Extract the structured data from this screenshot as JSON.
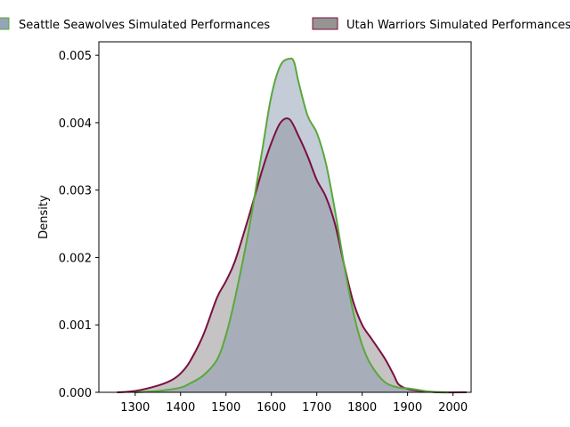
{
  "chart_data": {
    "type": "area",
    "title": "",
    "xlabel": "",
    "ylabel": "Density",
    "xlim": [
      1220,
      2040
    ],
    "ylim": [
      0,
      0.0052
    ],
    "xticks": [
      1300,
      1400,
      1500,
      1600,
      1700,
      1800,
      1900,
      2000
    ],
    "yticks": [
      0.0,
      0.001,
      0.002,
      0.003,
      0.004,
      0.005
    ],
    "ytick_labels": [
      "0.000",
      "0.001",
      "0.002",
      "0.003",
      "0.004",
      "0.005"
    ],
    "grid": false,
    "legend_position": "top",
    "series": [
      {
        "name": "Seattle Seawolves Simulated Performances",
        "line_color": "#5aa83c",
        "fill_color": "#8a9ab0",
        "fill_opacity": 0.5,
        "x": [
          1300,
          1350,
          1400,
          1420,
          1450,
          1480,
          1500,
          1520,
          1550,
          1580,
          1600,
          1620,
          1640,
          1650,
          1660,
          1680,
          1700,
          1720,
          1740,
          1760,
          1780,
          1800,
          1820,
          1850,
          1880,
          1900,
          1920,
          1950,
          1990
        ],
        "y": [
          0.0,
          2e-05,
          7e-05,
          0.00013,
          0.00025,
          0.00048,
          0.00085,
          0.0014,
          0.0024,
          0.0036,
          0.0044,
          0.00485,
          0.00495,
          0.0049,
          0.0046,
          0.0041,
          0.00385,
          0.0034,
          0.0027,
          0.0019,
          0.0012,
          0.0007,
          0.0004,
          0.00015,
          7e-05,
          6e-05,
          4e-05,
          1e-05,
          0.0
        ]
      },
      {
        "name": "Utah Warriors Simulated Performances",
        "line_color": "#7a1040",
        "fill_color": "#8c8888",
        "fill_opacity": 0.5,
        "x": [
          1260,
          1300,
          1350,
          1380,
          1400,
          1420,
          1450,
          1480,
          1500,
          1520,
          1550,
          1580,
          1600,
          1620,
          1640,
          1660,
          1680,
          1700,
          1720,
          1740,
          1760,
          1780,
          1800,
          1820,
          1850,
          1870,
          1880,
          1900,
          1930,
          1970,
          2030
        ],
        "y": [
          0.0,
          2e-05,
          0.0001,
          0.00018,
          0.00028,
          0.00045,
          0.00085,
          0.0014,
          0.00165,
          0.00195,
          0.0026,
          0.0033,
          0.0037,
          0.004,
          0.00405,
          0.0038,
          0.0035,
          0.00315,
          0.0029,
          0.0025,
          0.0019,
          0.00135,
          0.001,
          0.0008,
          0.0005,
          0.00025,
          0.00012,
          5e-05,
          2e-05,
          0.0,
          0.0
        ]
      }
    ]
  }
}
